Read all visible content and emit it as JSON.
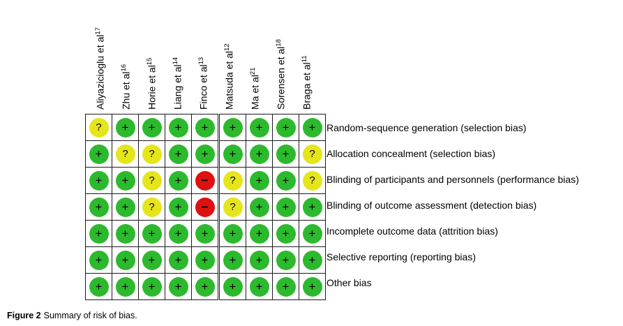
{
  "figure_caption": {
    "label": "Figure 2",
    "text": "Summary of risk of bias."
  },
  "chart_data": {
    "type": "heatmap",
    "title": "Summary of risk of bias",
    "columns": [
      {
        "name": "Aliyazicioglu et al",
        "ref": "17"
      },
      {
        "name": "Zhu et al",
        "ref": "16"
      },
      {
        "name": "Horie et al",
        "ref": "15"
      },
      {
        "name": "Liang et al",
        "ref": "14"
      },
      {
        "name": "Finco et al",
        "ref": "13"
      },
      {
        "name": "Matsuda et al",
        "ref": "12"
      },
      {
        "name": "Ma et al",
        "ref": "21"
      },
      {
        "name": "Sorensen et al",
        "ref": "18"
      },
      {
        "name": "Braga et al",
        "ref": "11"
      }
    ],
    "rows": [
      "Random-sequence generation (selection bias)",
      "Allocation concealment (selection bias)",
      "Blinding of participants and personnels (performance bias)",
      "Blinding of outcome assessment (detection bias)",
      "Incomplete outcome data (attrition bias)",
      "Selective reporting (reporting bias)",
      "Other bias"
    ],
    "values": [
      [
        "?",
        "+",
        "+",
        "+",
        "+",
        "+",
        "+",
        "+",
        "+"
      ],
      [
        "+",
        "?",
        "?",
        "+",
        "+",
        "+",
        "+",
        "+",
        "?"
      ],
      [
        "+",
        "+",
        "?",
        "+",
        "-",
        "?",
        "+",
        "+",
        "?"
      ],
      [
        "+",
        "+",
        "?",
        "+",
        "-",
        "?",
        "+",
        "+",
        "+"
      ],
      [
        "+",
        "+",
        "+",
        "+",
        "+",
        "+",
        "+",
        "+",
        "+"
      ],
      [
        "+",
        "+",
        "+",
        "+",
        "+",
        "+",
        "+",
        "+",
        "+"
      ],
      [
        "+",
        "+",
        "+",
        "+",
        "+",
        "+",
        "+",
        "+",
        "+"
      ]
    ],
    "symbol_glyphs": {
      "+": "+",
      "?": "?",
      "-": "−"
    },
    "symbol_colors": {
      "+": "#2db92d",
      "?": "#e5e51c",
      "-": "#dd1111"
    },
    "grid_border_color": "#1a1a1a",
    "legend_position": "none"
  }
}
